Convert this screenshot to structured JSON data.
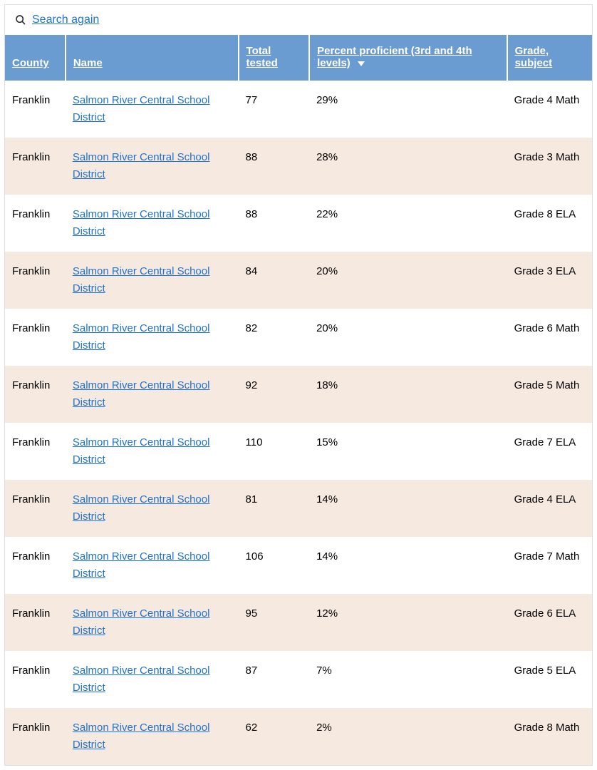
{
  "colors": {
    "header_bg": "#6a9bd1",
    "link": "#1e73d4",
    "row_alt_bg": "#f5e9e0",
    "row_bg": "#ffffff",
    "text": "#000000",
    "border": "#dddddd"
  },
  "search": {
    "label": "Search again"
  },
  "table": {
    "columns": {
      "county": "County",
      "name": "Name",
      "total_tested": "Total tested",
      "percent_proficient": "Percent proficient (3rd and 4th levels)",
      "grade_subject": "Grade, subject"
    },
    "sorted_column": "percent_proficient",
    "sort_direction": "desc",
    "rows": [
      {
        "county": "Franklin",
        "name": "Salmon River Central School District",
        "total_tested": "77",
        "percent": "29%",
        "grade_subject": "Grade 4 Math"
      },
      {
        "county": "Franklin",
        "name": "Salmon River Central School District",
        "total_tested": "88",
        "percent": "28%",
        "grade_subject": "Grade 3 Math"
      },
      {
        "county": "Franklin",
        "name": "Salmon River Central School District",
        "total_tested": "88",
        "percent": "22%",
        "grade_subject": "Grade 8 ELA"
      },
      {
        "county": "Franklin",
        "name": "Salmon River Central School District",
        "total_tested": "84",
        "percent": "20%",
        "grade_subject": "Grade 3 ELA"
      },
      {
        "county": "Franklin",
        "name": "Salmon River Central School District",
        "total_tested": "82",
        "percent": "20%",
        "grade_subject": "Grade 6 Math"
      },
      {
        "county": "Franklin",
        "name": "Salmon River Central School District",
        "total_tested": "92",
        "percent": "18%",
        "grade_subject": "Grade 5 Math"
      },
      {
        "county": "Franklin",
        "name": "Salmon River Central School District",
        "total_tested": "110",
        "percent": "15%",
        "grade_subject": "Grade 7 ELA"
      },
      {
        "county": "Franklin",
        "name": "Salmon River Central School District",
        "total_tested": "81",
        "percent": "14%",
        "grade_subject": "Grade 4 ELA"
      },
      {
        "county": "Franklin",
        "name": "Salmon River Central School District",
        "total_tested": "106",
        "percent": "14%",
        "grade_subject": "Grade 7 Math"
      },
      {
        "county": "Franklin",
        "name": "Salmon River Central School District",
        "total_tested": "95",
        "percent": "12%",
        "grade_subject": "Grade 6 ELA"
      },
      {
        "county": "Franklin",
        "name": "Salmon River Central School District",
        "total_tested": "87",
        "percent": "7%",
        "grade_subject": "Grade 5 ELA"
      },
      {
        "county": "Franklin",
        "name": "Salmon River Central School District",
        "total_tested": "62",
        "percent": "2%",
        "grade_subject": "Grade 8 Math"
      }
    ]
  }
}
